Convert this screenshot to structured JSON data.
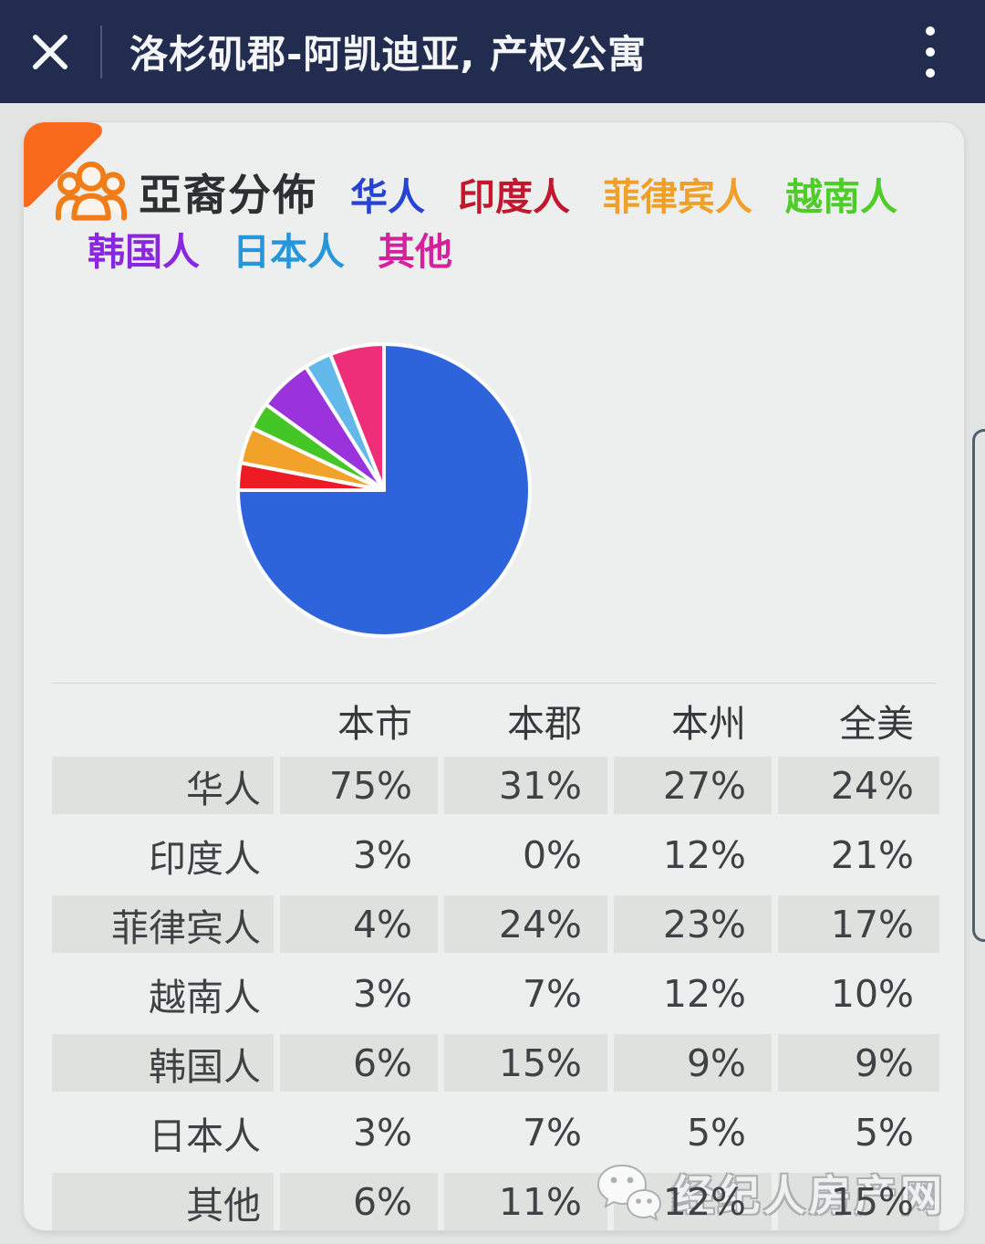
{
  "titlebar": {
    "title": "洛杉矶郡-阿凯迪亚, 产权公寓",
    "bar_color": "#222c4e",
    "close_icon": "close-x",
    "menu_icon": "vertical-ellipsis"
  },
  "card": {
    "corner_fold_color": "#fa6a1c",
    "header": {
      "icon": "people-group-icon",
      "icon_color": "#f07d18",
      "title": "亞裔分佈",
      "legend": [
        {
          "label": "华人",
          "color": "#2743d6"
        },
        {
          "label": "印度人",
          "color": "#c2172f"
        },
        {
          "label": "菲律宾人",
          "color": "#f0a028"
        },
        {
          "label": "越南人",
          "color": "#4ecd29"
        },
        {
          "label": "韩国人",
          "color": "#8a25e0"
        },
        {
          "label": "日本人",
          "color": "#2596dc"
        },
        {
          "label": "其他",
          "color": "#d6219f"
        }
      ]
    }
  },
  "chart_data": {
    "type": "pie",
    "title": "亞裔分佈",
    "categories": [
      "华人",
      "印度人",
      "菲律宾人",
      "越南人",
      "韩国人",
      "日本人",
      "其他"
    ],
    "values": [
      75,
      3,
      4,
      3,
      6,
      3,
      6
    ],
    "unit": "%",
    "colors": [
      "#2d64dc",
      "#ed1c24",
      "#f3a229",
      "#44c626",
      "#9b33dd",
      "#62b8e8",
      "#ee2e78"
    ],
    "start_angle_deg": 0,
    "direction": "clockwise",
    "slice_border_color": "#ffffff",
    "legend_position": "top"
  },
  "table": {
    "columns": [
      "本市",
      "本郡",
      "本州",
      "全美"
    ],
    "rows": [
      {
        "label": "华人",
        "values": [
          "75%",
          "31%",
          "27%",
          "24%"
        ]
      },
      {
        "label": "印度人",
        "values": [
          "3%",
          "0%",
          "12%",
          "21%"
        ]
      },
      {
        "label": "菲律宾人",
        "values": [
          "4%",
          "24%",
          "23%",
          "17%"
        ]
      },
      {
        "label": "越南人",
        "values": [
          "3%",
          "7%",
          "12%",
          "10%"
        ]
      },
      {
        "label": "韩国人",
        "values": [
          "6%",
          "15%",
          "9%",
          "9%"
        ]
      },
      {
        "label": "日本人",
        "values": [
          "3%",
          "7%",
          "5%",
          "5%"
        ]
      },
      {
        "label": "其他",
        "values": [
          "6%",
          "11%",
          "12%",
          "15%"
        ]
      }
    ]
  },
  "watermark": {
    "icon": "wechat-icon",
    "text": "经纪人房产网"
  }
}
